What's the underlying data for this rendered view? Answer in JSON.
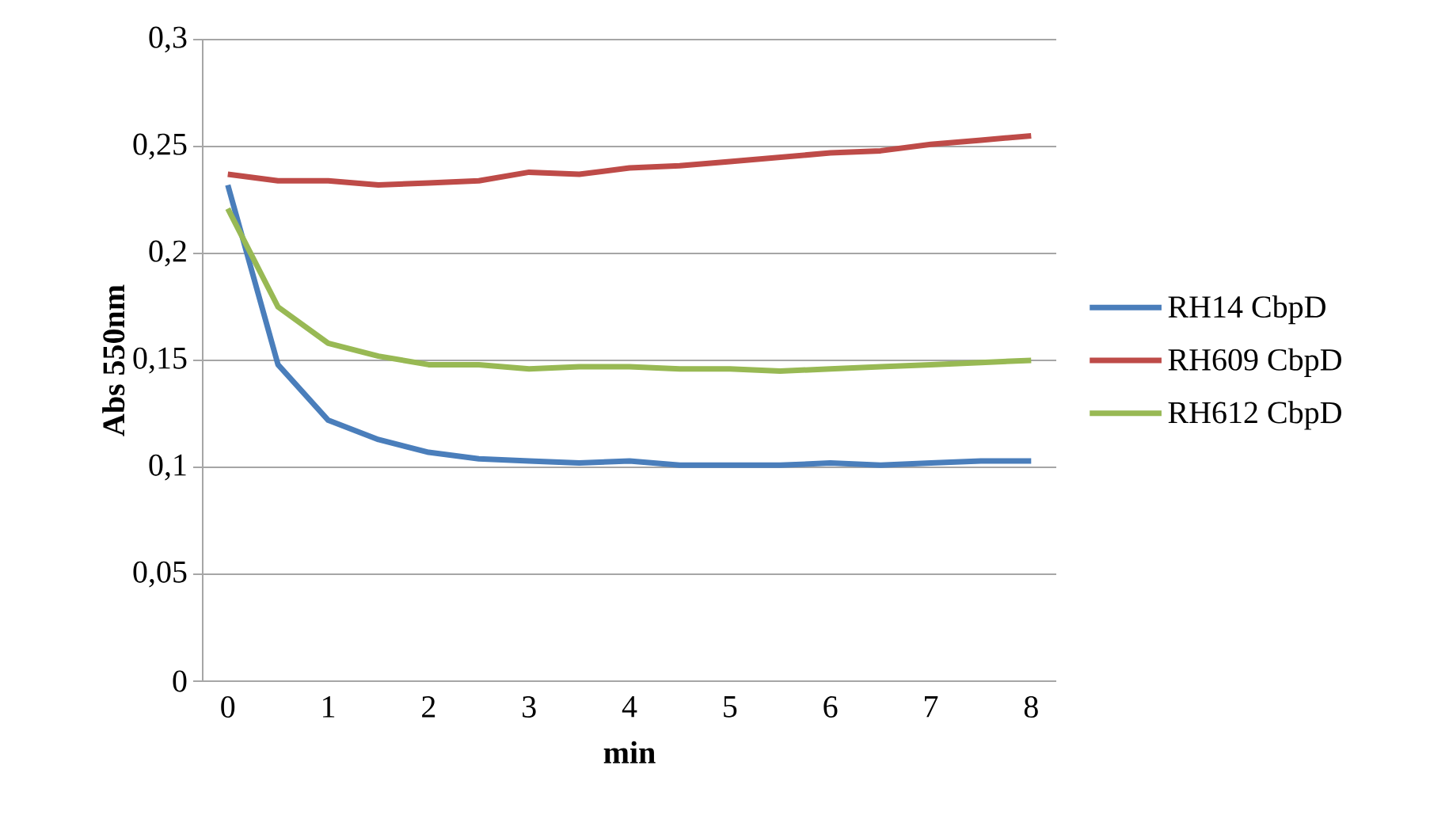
{
  "chart_data": {
    "type": "line",
    "xlabel": "min",
    "ylabel": "Abs 550nm",
    "categories": [
      "0",
      null,
      "1",
      null,
      "2",
      null,
      "3",
      null,
      "4",
      null,
      "5",
      null,
      "6",
      null,
      "7",
      null,
      "8"
    ],
    "series": [
      {
        "name": "RH14 CbpD",
        "color": "#4a7ebb",
        "values": [
          0.232,
          0.148,
          0.122,
          0.113,
          0.107,
          0.104,
          0.103,
          0.102,
          0.103,
          0.101,
          0.101,
          0.101,
          0.102,
          0.101,
          0.102,
          0.103,
          0.103
        ]
      },
      {
        "name": "RH609 CbpD",
        "color": "#be4b48",
        "values": [
          0.237,
          0.234,
          0.234,
          0.232,
          0.233,
          0.234,
          0.238,
          0.237,
          0.24,
          0.241,
          0.243,
          0.245,
          0.247,
          0.248,
          0.251,
          0.253,
          0.255
        ]
      },
      {
        "name": "RH612 CbpD",
        "color": "#98b954",
        "values": [
          0.221,
          0.175,
          0.158,
          0.152,
          0.148,
          0.148,
          0.146,
          0.147,
          0.147,
          0.146,
          0.146,
          0.145,
          0.146,
          0.147,
          0.148,
          0.149,
          0.15
        ]
      }
    ],
    "ylim": [
      0,
      0.3
    ],
    "yticks": [
      0,
      {
        "value": 0.05,
        "label": "0,05"
      },
      {
        "value": 0.1,
        "label": "0,1"
      },
      {
        "value": 0.15,
        "label": "0,15"
      },
      {
        "value": 0.2,
        "label": "0,2"
      },
      {
        "value": 0.25,
        "label": "0,25"
      },
      {
        "value": 0.3,
        "label": "0,3"
      }
    ],
    "grid": "y",
    "legend": "right"
  }
}
